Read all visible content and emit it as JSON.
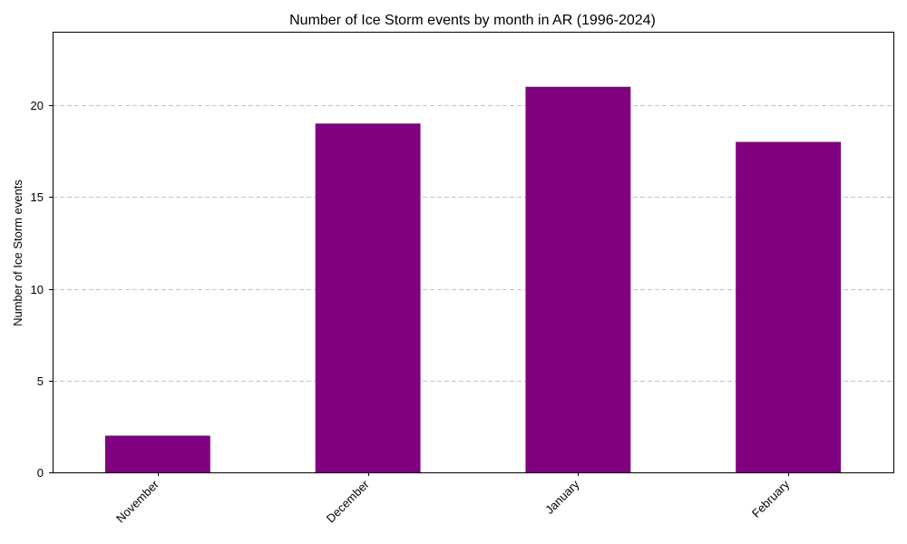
{
  "colors": {
    "bar": "#800080",
    "grid": "#b0b0b0",
    "axis": "#000000",
    "background": "#ffffff"
  },
  "chart_data": {
    "type": "bar",
    "title": "Number of Ice Storm events by month in AR (1996-2024)",
    "xlabel": "",
    "ylabel": "Number of Ice Storm events",
    "categories": [
      "November",
      "December",
      "January",
      "February"
    ],
    "values": [
      2,
      19,
      21,
      18
    ],
    "ylim": [
      0,
      24
    ],
    "yticks": [
      0,
      5,
      10,
      15,
      20
    ],
    "ytick_labels": [
      "0",
      "5",
      "10",
      "15",
      "20"
    ],
    "grid": "y-dashed",
    "xtick_rotation": "45"
  }
}
